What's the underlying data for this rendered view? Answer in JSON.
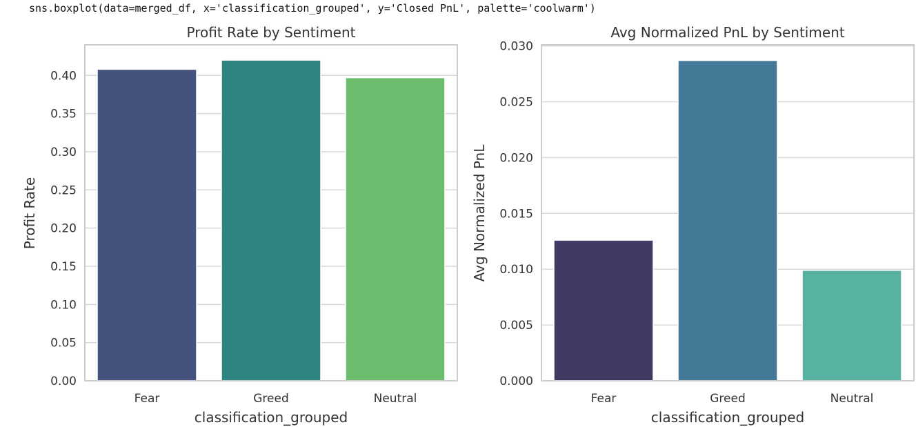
{
  "code_cell": {
    "text": "sns.boxplot(data=merged_df, x='classification_grouped', y='Closed PnL', palette='coolwarm')"
  },
  "chart_data": [
    {
      "type": "bar",
      "title": "Profit Rate by Sentiment",
      "xlabel": "classification_grouped",
      "ylabel": "Profit Rate",
      "categories": [
        "Fear",
        "Greed",
        "Neutral"
      ],
      "values": [
        0.408,
        0.42,
        0.397
      ],
      "colors": [
        "#46527e",
        "#2e8480",
        "#6cbe6e"
      ],
      "ylim": [
        0,
        0.44
      ],
      "yticks": [
        "0.00",
        "0.05",
        "0.10",
        "0.15",
        "0.20",
        "0.25",
        "0.30",
        "0.35",
        "0.40"
      ],
      "grid": true
    },
    {
      "type": "bar",
      "title": "Avg Normalized PnL by Sentiment",
      "xlabel": "classification_grouped",
      "ylabel": "Avg Normalized PnL",
      "categories": [
        "Fear",
        "Greed",
        "Neutral"
      ],
      "values": [
        0.0126,
        0.0287,
        0.0099
      ],
      "colors": [
        "#433a63",
        "#437896",
        "#57b2a1"
      ],
      "ylim": [
        0,
        0.0301
      ],
      "yticks": [
        "0.000",
        "0.005",
        "0.010",
        "0.015",
        "0.020",
        "0.025",
        "0.030"
      ],
      "grid": true
    }
  ]
}
